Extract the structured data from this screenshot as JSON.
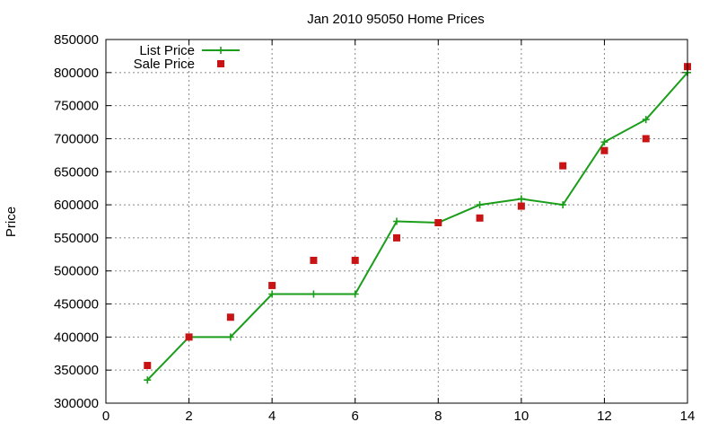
{
  "chart_data": {
    "type": "line",
    "title": "Jan 2010 95050 Home Prices",
    "xlabel": "",
    "ylabel": "Price",
    "xlim": [
      0,
      14
    ],
    "ylim": [
      300000,
      850000
    ],
    "x_ticks": [
      "0",
      "2",
      "4",
      "6",
      "8",
      "10",
      "12",
      "14"
    ],
    "y_ticks": [
      "300000",
      "350000",
      "400000",
      "450000",
      "500000",
      "550000",
      "600000",
      "650000",
      "700000",
      "750000",
      "800000",
      "850000"
    ],
    "grid": true,
    "legend_position": "top-left",
    "series": [
      {
        "name": "List Price",
        "style": "line+cross",
        "color": "#1a9e1a",
        "points": [
          [
            1,
            335000
          ],
          [
            2,
            400000
          ],
          [
            3,
            400000
          ],
          [
            4,
            465000
          ],
          [
            5,
            465000
          ],
          [
            6,
            465000
          ],
          [
            7,
            575000
          ],
          [
            8,
            573000
          ],
          [
            9,
            600000
          ],
          [
            10,
            609000
          ],
          [
            11,
            600000
          ],
          [
            12,
            695000
          ],
          [
            13,
            729000
          ],
          [
            14,
            800000
          ]
        ]
      },
      {
        "name": "Sale Price",
        "style": "square",
        "color": "#c81414",
        "points": [
          [
            1,
            357000
          ],
          [
            2,
            400000
          ],
          [
            3,
            430000
          ],
          [
            4,
            478000
          ],
          [
            5,
            516000
          ],
          [
            6,
            516000
          ],
          [
            7,
            550000
          ],
          [
            8,
            573000
          ],
          [
            9,
            580000
          ],
          [
            10,
            598000
          ],
          [
            11,
            659000
          ],
          [
            12,
            682000
          ],
          [
            13,
            700000
          ],
          [
            14,
            809000
          ]
        ]
      }
    ]
  }
}
